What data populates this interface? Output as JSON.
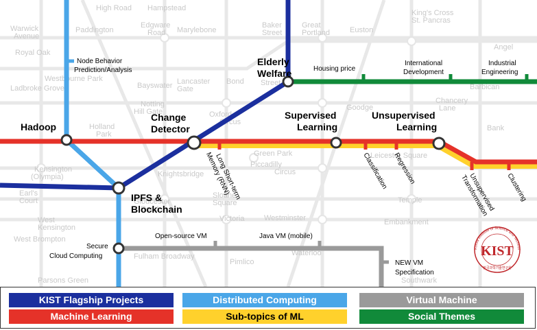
{
  "stations": {
    "elderly_welfare": [
      "Elderly",
      "Welfare"
    ],
    "hadoop": "Hadoop",
    "change_detector": [
      "Change",
      "Detector"
    ],
    "supervised_learning": [
      "Supervised",
      "Learning"
    ],
    "unsupervised_learning": [
      "Unsupervised",
      "Learning"
    ],
    "ipfs_blockchain": [
      "IPFS &",
      "Blockchain"
    ],
    "secure_cloud": [
      "Secure",
      "Cloud Computing"
    ]
  },
  "stops": {
    "node_behavior": [
      "Node Behavior",
      "Prediction/Analysis"
    ],
    "housing_price": "Housing price",
    "international_development": [
      "International",
      "Development"
    ],
    "industrial_engineering": [
      "Industrial",
      "Engineering"
    ],
    "lstm": [
      "Long Short-term",
      "Memory (RNN)"
    ],
    "classification": "Classification",
    "regression": "Regression",
    "unsupervised_transformation": [
      "Unsupervised",
      "Transformation"
    ],
    "clustering": "Clustering",
    "open_source_vm": "Open-source VM",
    "java_vm": "Java VM (mobile)",
    "new_vm": [
      "NEW VM",
      "Specification"
    ]
  },
  "background_map_labels": [
    "High Road",
    "Hampstead",
    "Warwick",
    "Avenue",
    "Paddington",
    "Edgware",
    "Road",
    "Marylebone",
    "Baker",
    "Street",
    "Great",
    "Portland",
    "Euston",
    "King's Cross",
    "St. Pancras",
    "Angel",
    "Royal Oak",
    "Westbourne Park",
    "Ladbroke Grove",
    "Bayswater",
    "Lancaster",
    "Gate",
    "Bond",
    "Street",
    "Goodge",
    "Barbican",
    "Chancery",
    "Lane",
    "Holland",
    "Park",
    "Notting",
    "Hill Gate",
    "Oxford",
    "Circus",
    "Bank",
    "Kensington",
    "(Olympia)",
    "Knightsbridge",
    "Green Park",
    "Piccadilly",
    "Circus",
    "Leicester Square",
    "Temple",
    "Earl's",
    "Court",
    "Gloucester",
    "Road",
    "Sloane",
    "Square",
    "Westminster",
    "Embankment",
    "West",
    "Kensington",
    "Victoria",
    "West Brompton",
    "Pimlico",
    "Fulham Broadway",
    "Parsons Green",
    "Waterloo",
    "Southwark"
  ],
  "logo": {
    "title": "KIST",
    "circle_text": "Korea Institute of Science and Technology",
    "korean": "한국과학기술연구원"
  },
  "legend": [
    {
      "label": "KIST Flagship Projects",
      "color": "#1b2f9e",
      "text_color": "#ffffff"
    },
    {
      "label": "Distributed Computing",
      "color": "#4aa6e8",
      "text_color": "#ffffff"
    },
    {
      "label": "Virtual Machine",
      "color": "#9a9a9a",
      "text_color": "#ffffff"
    },
    {
      "label": "Machine Learning",
      "color": "#e53229",
      "text_color": "#ffffff"
    },
    {
      "label": "Sub-topics of ML",
      "color": "#ffd12c",
      "text_color": "#000000"
    },
    {
      "label": "Social Themes",
      "color": "#118a3a",
      "text_color": "#ffffff"
    }
  ]
}
